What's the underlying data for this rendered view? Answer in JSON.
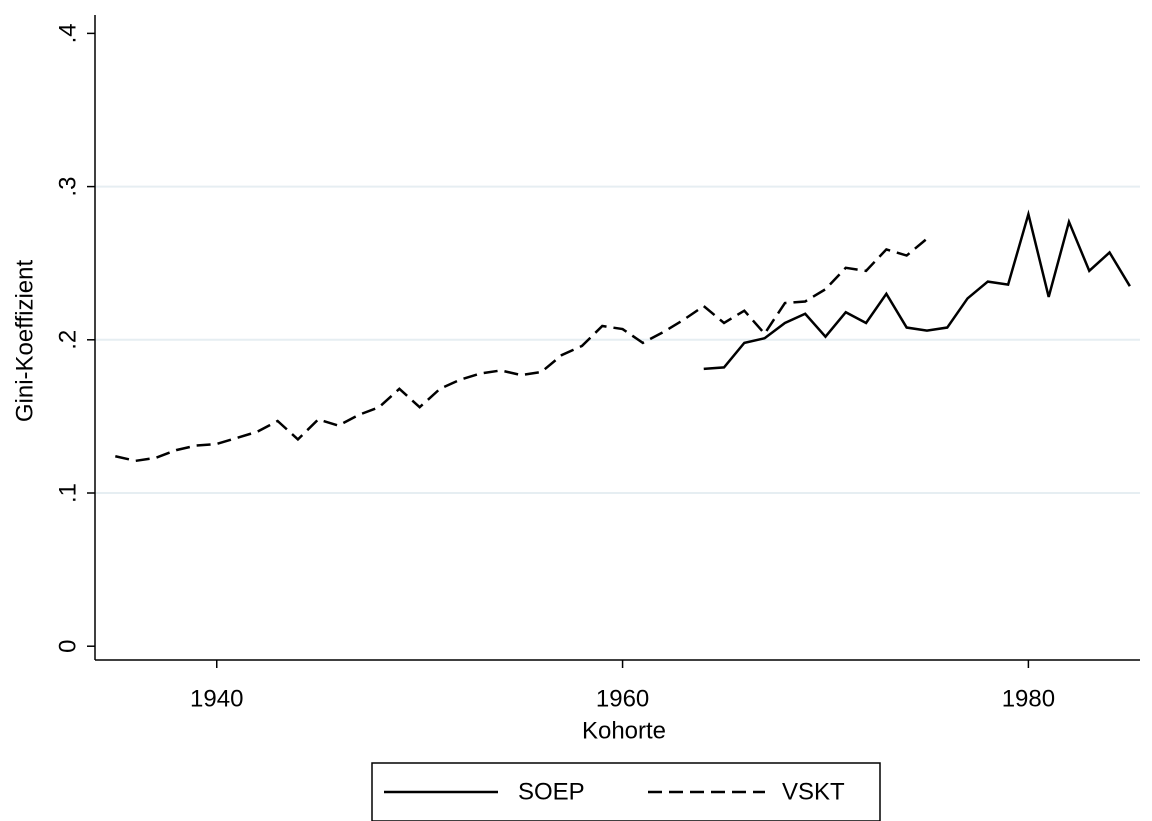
{
  "chart_data": {
    "type": "line",
    "x_label": "Kohorte",
    "y_label": "Gini-Koeffizient",
    "x": [
      1935,
      1936,
      1937,
      1938,
      1939,
      1940,
      1941,
      1942,
      1943,
      1944,
      1945,
      1946,
      1947,
      1948,
      1949,
      1950,
      1951,
      1952,
      1953,
      1954,
      1955,
      1956,
      1957,
      1958,
      1959,
      1960,
      1961,
      1962,
      1963,
      1964,
      1965,
      1966,
      1967,
      1968,
      1969,
      1970,
      1971,
      1972,
      1973,
      1974,
      1975,
      1976,
      1977,
      1978,
      1979,
      1980,
      1981,
      1982,
      1983,
      1984,
      1985
    ],
    "series": [
      {
        "name": "SOEP",
        "color": "#000000",
        "linestyle": "solid",
        "values": [
          null,
          null,
          null,
          null,
          null,
          null,
          null,
          null,
          null,
          null,
          null,
          null,
          null,
          null,
          null,
          null,
          null,
          null,
          null,
          null,
          null,
          null,
          null,
          null,
          null,
          null,
          null,
          null,
          null,
          0.181,
          0.182,
          0.198,
          0.201,
          0.211,
          0.217,
          0.202,
          0.218,
          0.211,
          0.23,
          0.208,
          0.206,
          0.208,
          0.227,
          0.238,
          0.236,
          0.282,
          0.228,
          0.277,
          0.245,
          0.257,
          0.235
        ]
      },
      {
        "name": "VSKT",
        "color": "#000000",
        "linestyle": "dashed",
        "values": [
          0.124,
          0.121,
          0.123,
          0.128,
          0.131,
          0.132,
          0.136,
          0.14,
          0.147,
          0.135,
          0.148,
          0.144,
          0.151,
          0.156,
          0.168,
          0.156,
          0.168,
          0.174,
          0.178,
          0.18,
          0.177,
          0.179,
          0.19,
          0.196,
          0.209,
          0.207,
          0.198,
          0.205,
          0.213,
          0.222,
          0.211,
          0.219,
          0.204,
          0.224,
          0.225,
          0.233,
          0.247,
          0.245,
          0.259,
          0.255,
          0.266,
          null,
          null,
          null,
          null,
          null,
          null,
          null,
          null,
          null,
          null
        ]
      }
    ],
    "xlim": [
      1934,
      1985.5
    ],
    "xticks": [
      1940,
      1960,
      1980
    ],
    "ylim": [
      -0.009,
      0.412
    ],
    "yticks": [
      0,
      {
        "value": 0.1,
        "label": ".1"
      },
      {
        "value": 0.2,
        "label": ".2"
      },
      {
        "value": 0.3,
        "label": ".3"
      },
      {
        "value": 0.4,
        "label": ".4"
      }
    ],
    "grid": true,
    "grid_color": "#e6eef2",
    "legend": "bottom"
  }
}
